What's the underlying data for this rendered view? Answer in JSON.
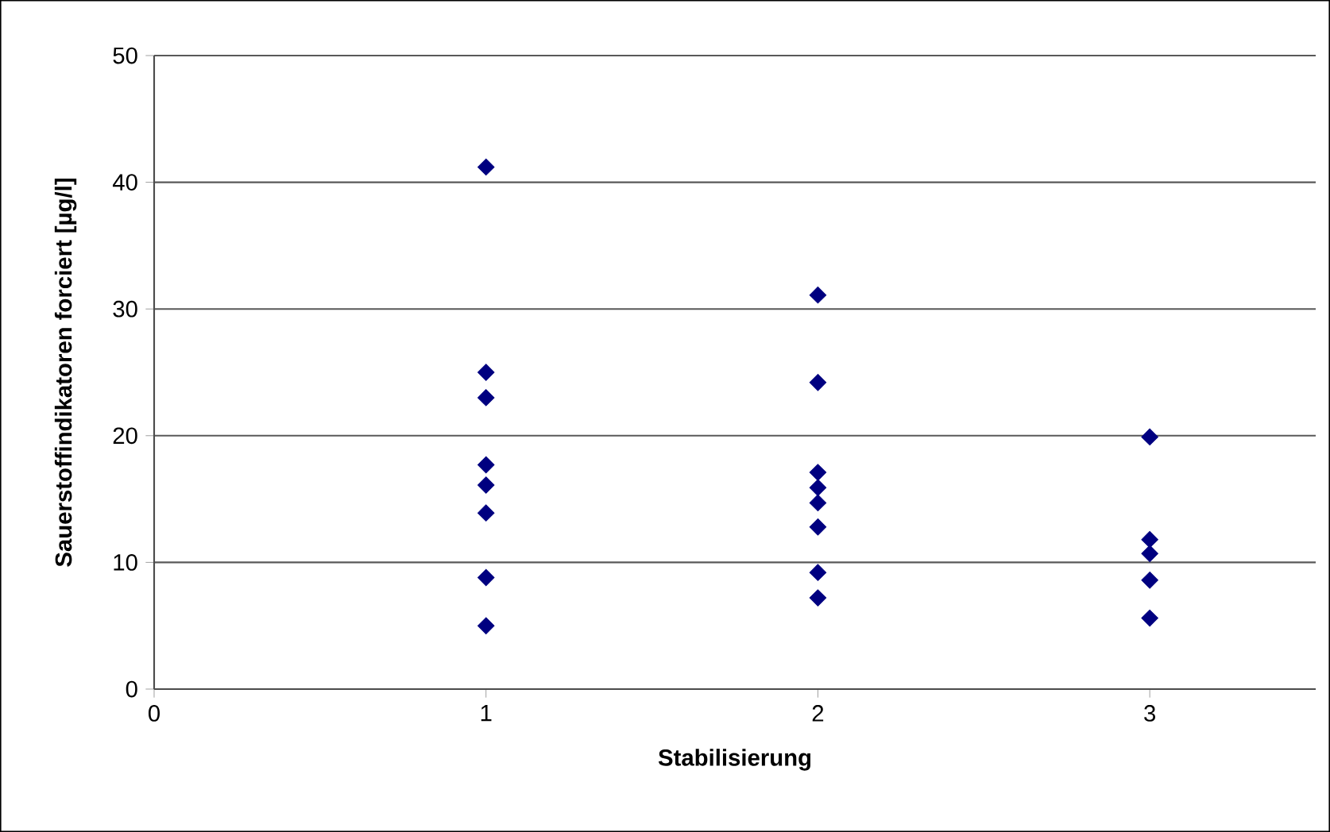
{
  "chart_data": {
    "type": "scatter",
    "xlabel": "Stabilisierung",
    "ylabel": "Sauerstoffindikatoren forciert [µg/l]",
    "x": [
      1,
      1,
      1,
      1,
      1,
      1,
      1,
      1,
      2,
      2,
      2,
      2,
      2,
      2,
      2,
      2,
      3,
      3,
      3,
      3,
      3
    ],
    "series": [
      {
        "color": "#000080",
        "values": [
          41.2,
          25.0,
          23.0,
          17.7,
          16.1,
          13.9,
          8.8,
          5.0,
          31.1,
          24.2,
          17.1,
          15.9,
          14.7,
          12.8,
          9.2,
          7.2,
          19.9,
          11.8,
          10.7,
          8.6,
          5.6
        ]
      }
    ],
    "marker": "diamond",
    "grid": "y",
    "xlim": [
      0,
      3.5
    ],
    "xticks": [
      0,
      1,
      2,
      3
    ],
    "ylim": [
      0,
      50
    ],
    "yticks": [
      0,
      10,
      20,
      30,
      40,
      50
    ]
  }
}
